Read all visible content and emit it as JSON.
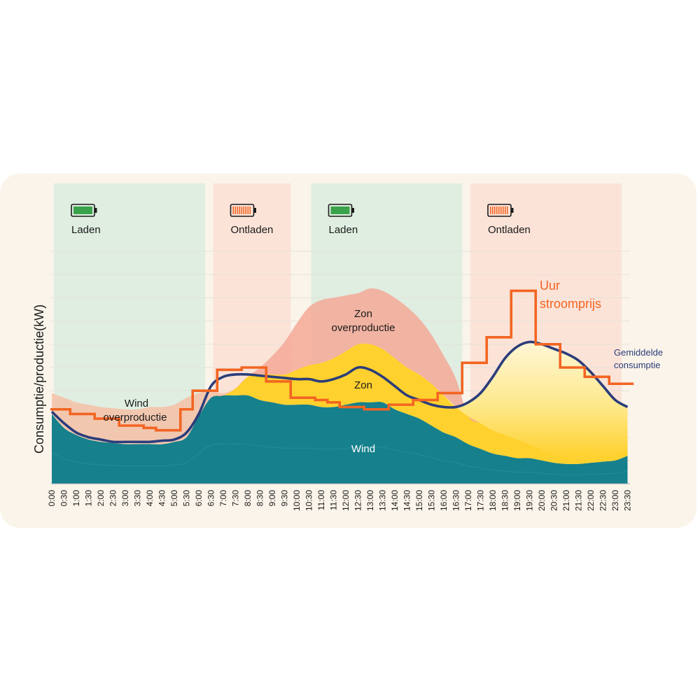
{
  "chart_data": {
    "type": "area",
    "ylabel": "Consumptie/productie(kW)",
    "x": [
      "0:00",
      "0:30",
      "1:00",
      "1:30",
      "2:00",
      "2:30",
      "3:00",
      "3:30",
      "4:00",
      "4:30",
      "5:00",
      "5:30",
      "6:00",
      "6:30",
      "7:00",
      "7:30",
      "8:00",
      "8:30",
      "9:00",
      "9:30",
      "10:00",
      "10:30",
      "11:00",
      "11:30",
      "12:00",
      "12:30",
      "13:00",
      "13:30",
      "14:00",
      "14:30",
      "15:00",
      "15:30",
      "16:00",
      "16:30",
      "17:00",
      "17:30",
      "18:00",
      "18:30",
      "19:00",
      "19:30",
      "20:00",
      "20:30",
      "21:00",
      "21:30",
      "22:00",
      "22:30",
      "23:00",
      "23:30"
    ],
    "ylim": [
      0,
      10
    ],
    "grid": true,
    "zones": [
      {
        "label": "Laden",
        "state": "charge",
        "start": "0:00",
        "end": "6:00"
      },
      {
        "label": "Ontladen",
        "state": "discharge",
        "start": "6:30",
        "end": "9:30"
      },
      {
        "label": "Laden",
        "state": "charge",
        "start": "10:30",
        "end": "16:30"
      },
      {
        "label": "Ontladen",
        "state": "discharge",
        "start": "17:00",
        "end": "23:00"
      }
    ],
    "areas": [
      {
        "label": "Wind",
        "color": "#16808c",
        "values": [
          3.0,
          2.4,
          2.1,
          1.9,
          1.8,
          1.75,
          1.7,
          1.7,
          1.7,
          1.7,
          1.8,
          2.0,
          2.9,
          3.7,
          3.8,
          3.8,
          3.8,
          3.6,
          3.5,
          3.4,
          3.4,
          3.4,
          3.3,
          3.3,
          3.4,
          3.5,
          3.5,
          3.5,
          3.2,
          3.0,
          2.8,
          2.5,
          2.2,
          2.0,
          1.7,
          1.5,
          1.3,
          1.2,
          1.1,
          1.1,
          1.0,
          0.9,
          0.85,
          0.85,
          0.9,
          0.95,
          1.0,
          1.2
        ]
      },
      {
        "label": "Zon",
        "color": "#ffd12e",
        "values": [
          0,
          0,
          0,
          0,
          0,
          0,
          0,
          0,
          0,
          0,
          0,
          0,
          0,
          0,
          0,
          0.3,
          0.8,
          1.1,
          1.2,
          1.3,
          1.5,
          1.7,
          1.9,
          2.1,
          2.3,
          2.5,
          2.5,
          2.3,
          2.2,
          2.0,
          1.9,
          1.8,
          1.6,
          1.3,
          1.2,
          1.1,
          1.0,
          0.9,
          0.8,
          0.6,
          0.5,
          0.4,
          0.35,
          0.3,
          0.3,
          0.3,
          0.3,
          0.3
        ]
      },
      {
        "label": "Wind overproductie",
        "color": "#f6bfa6",
        "values": [
          0.9,
          1.3,
          1.4,
          1.5,
          1.5,
          1.5,
          1.5,
          1.5,
          1.6,
          1.6,
          1.6,
          1.7,
          1.0,
          0.3,
          0.1,
          0,
          0,
          0,
          0,
          0,
          0,
          0,
          0,
          0,
          0,
          0,
          0,
          0,
          0,
          0,
          0,
          0,
          0,
          0,
          0,
          0,
          0,
          0,
          0,
          0,
          0,
          0,
          0,
          0,
          0,
          0,
          0,
          0
        ]
      },
      {
        "label": "Zon overproductie",
        "color": "#f4a896",
        "values": [
          0,
          0,
          0,
          0,
          0,
          0,
          0,
          0,
          0,
          0,
          0,
          0,
          0,
          0,
          0,
          0,
          0,
          0.3,
          0.8,
          1.4,
          2.0,
          2.5,
          2.7,
          2.6,
          2.4,
          2.2,
          2.4,
          2.5,
          2.6,
          2.6,
          2.4,
          2.1,
          1.7,
          1.2,
          0,
          0,
          0,
          0,
          0,
          0,
          0,
          0,
          0,
          0,
          0,
          0,
          0,
          0
        ]
      }
    ],
    "series": [
      {
        "name": "Gemiddelde consumptie",
        "color": "#2b3d7a",
        "values": [
          3.1,
          2.6,
          2.2,
          2.0,
          1.9,
          1.8,
          1.8,
          1.8,
          1.8,
          1.85,
          1.9,
          2.2,
          3.0,
          4.2,
          4.6,
          4.7,
          4.7,
          4.65,
          4.6,
          4.55,
          4.5,
          4.5,
          4.4,
          4.5,
          4.7,
          5.0,
          4.9,
          4.6,
          4.2,
          3.8,
          3.6,
          3.4,
          3.3,
          3.3,
          3.5,
          3.9,
          4.6,
          5.4,
          5.9,
          6.1,
          6.0,
          5.8,
          5.6,
          5.3,
          4.8,
          4.2,
          3.6,
          3.3
        ]
      },
      {
        "name": "Uur stroomprijs",
        "color": "#f26522",
        "values": [
          3.2,
          3.2,
          3.0,
          3.0,
          2.8,
          2.8,
          2.5,
          2.5,
          2.4,
          2.3,
          2.3,
          3.2,
          4.0,
          4.0,
          4.9,
          4.9,
          5.0,
          5.0,
          4.4,
          4.4,
          3.7,
          3.7,
          3.6,
          3.5,
          3.3,
          3.3,
          3.2,
          3.2,
          3.4,
          3.4,
          3.6,
          3.6,
          3.9,
          3.9,
          5.2,
          5.2,
          6.3,
          6.3,
          8.3,
          8.3,
          6.0,
          6.0,
          5.0,
          5.0,
          4.6,
          4.6,
          4.3,
          4.3
        ]
      }
    ],
    "annotations": {
      "zone_labels": [
        "Laden",
        "Ontladen",
        "Laden",
        "Ontladen"
      ],
      "wind_over_1": "Wind",
      "wind_over_2": "overproductie",
      "zon_over_1": "Zon",
      "zon_over_2": "overproductie",
      "zon": "Zon",
      "wind": "Wind",
      "price_1": "Uur",
      "price_2": "stroomprijs",
      "cons_1": "Gemiddelde",
      "cons_2": "consumptie"
    }
  }
}
